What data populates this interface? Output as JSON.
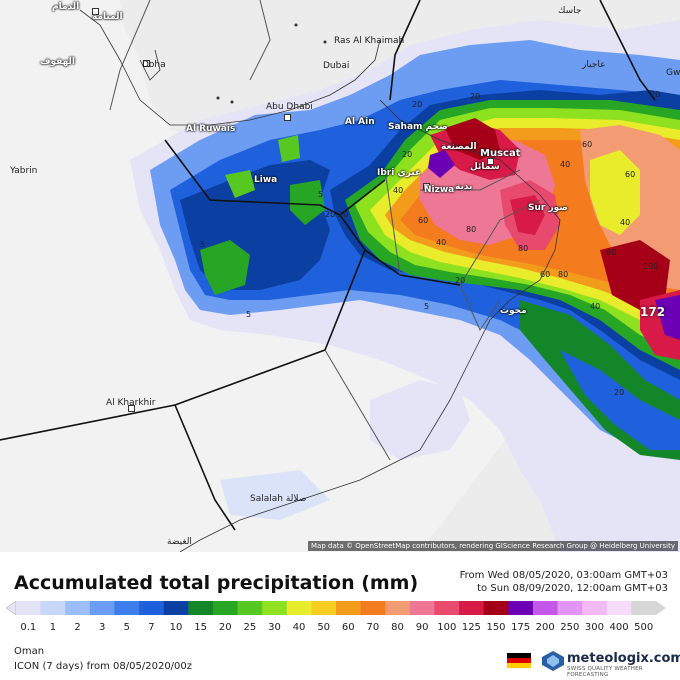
{
  "map": {
    "attribution": "Map data © OpenStreetMap contributors, rendering GIScience Research Group @ Heidelberg University",
    "max_value": "172",
    "cities": [
      {
        "label": "الدمام"
      },
      {
        "label": "المنامة"
      },
      {
        "label": "الهفوف"
      },
      {
        "label": "Doha"
      },
      {
        "label": "Dubai"
      },
      {
        "label": "Ras Al Khaimah"
      },
      {
        "label": "Abu Dhabi"
      },
      {
        "label": "Al Ruwais"
      },
      {
        "label": "Al Ain"
      },
      {
        "label": "Liwa"
      },
      {
        "label": "Yabrin"
      },
      {
        "label": "Saham صحم"
      },
      {
        "label": "المصنعة"
      },
      {
        "label": "Muscat"
      },
      {
        "label": "سمائل"
      },
      {
        "label": "Ibri عبري"
      },
      {
        "label": "Nizwa"
      },
      {
        "label": "بدية"
      },
      {
        "label": "Sur صور"
      },
      {
        "label": "محوت"
      },
      {
        "label": "Al Kharkhir"
      },
      {
        "label": "Salalah صلالة"
      },
      {
        "label": "الغيضة"
      },
      {
        "label": "جاسك"
      },
      {
        "label": "عاجبار"
      },
      {
        "label": "Gw"
      }
    ],
    "contour_labels": [
      "5",
      "20",
      "5",
      "40",
      "20",
      "20",
      "60",
      "80",
      "40",
      "40",
      "60",
      "100",
      "60",
      "80",
      "60",
      "40",
      "20",
      "20",
      "40",
      "20",
      "20",
      "5",
      "5",
      "20",
      "80",
      "60"
    ]
  },
  "legend": {
    "title": "Accumulated total precipitation (mm)",
    "period_from": "From Wed 08/05/2020, 03:00am GMT+03",
    "period_to": "to Sun 08/09/2020, 12:00am GMT+03",
    "ticks": [
      "0.1",
      "1",
      "2",
      "3",
      "5",
      "7",
      "10",
      "15",
      "20",
      "25",
      "30",
      "40",
      "50",
      "60",
      "70",
      "80",
      "90",
      "100",
      "125",
      "150",
      "175",
      "200",
      "250",
      "300",
      "400",
      "500"
    ],
    "colors": [
      "#e4e4f6",
      "#c8d7f9",
      "#9dbdf8",
      "#6c9df2",
      "#3f7eea",
      "#1f60dd",
      "#0b3fa2",
      "#13862a",
      "#27a625",
      "#57c722",
      "#8ee11f",
      "#e8ec2a",
      "#f3cd1f",
      "#f39c1c",
      "#f57b1f",
      "#f39b73",
      "#ef7796",
      "#e84a6e",
      "#d81a48",
      "#a60019",
      "#6b00b5",
      "#c257e8",
      "#e395f3",
      "#f0b8f5",
      "#f5dcf8",
      "#d6d6d6"
    ]
  },
  "footer": {
    "region": "Oman",
    "model": "ICON (7 days) from 08/05/2020/00z",
    "brand": "meteologix.com",
    "tagline": "SWISS QUALITY WEATHER FORECASTING"
  }
}
